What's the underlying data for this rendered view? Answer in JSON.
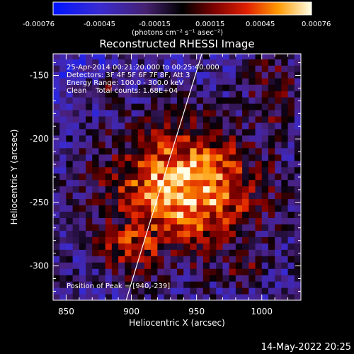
{
  "colorbar": {
    "ticks": [
      "-0.00076",
      "-0.00045",
      "-0.00015",
      "0.00015",
      "0.00045",
      "0.00076"
    ],
    "unit_label": "(photons cm⁻² s⁻¹ asec⁻²)",
    "range": [
      -0.00076,
      0.00076
    ]
  },
  "chart_data": {
    "type": "heatmap",
    "title": "Reconstructed RHESSI Image",
    "xlabel": "Heliocentric X (arcsec)",
    "ylabel": "Heliocentric Y (arcsec)",
    "xlim": [
      840,
      1030
    ],
    "ylim": [
      -327,
      -133
    ],
    "x_ticks": [
      "850",
      "900",
      "950",
      "1000"
    ],
    "y_ticks": [
      "-150",
      "-200",
      "-250",
      "-300"
    ],
    "x_tick_values": [
      850,
      900,
      950,
      1000
    ],
    "y_tick_values": [
      -150,
      -200,
      -250,
      -300
    ],
    "annotations": [
      "25-Apr-2014 00:21:20.000 to 00:25:40.000",
      "Detectors: 3F 4F 5F 6F 7F 8F, Att 3",
      "Energy Range: 100.0 - 300.0 keV",
      "Clean    Total counts: 1.68E+04"
    ],
    "peak_label": "Position of Peak = [940,-239]",
    "peak": [
      940,
      -239
    ],
    "limb_curve": {
      "x": [
        896,
        910,
        925,
        940,
        955
      ],
      "y": [
        -327,
        -280,
        -230,
        -180,
        -130
      ]
    }
  },
  "footer": {
    "date": "14-May-2022 20:25"
  },
  "colors": {
    "plot_bg": "#2b1466",
    "limb": "#ffffff",
    "text": "#ffffff"
  }
}
